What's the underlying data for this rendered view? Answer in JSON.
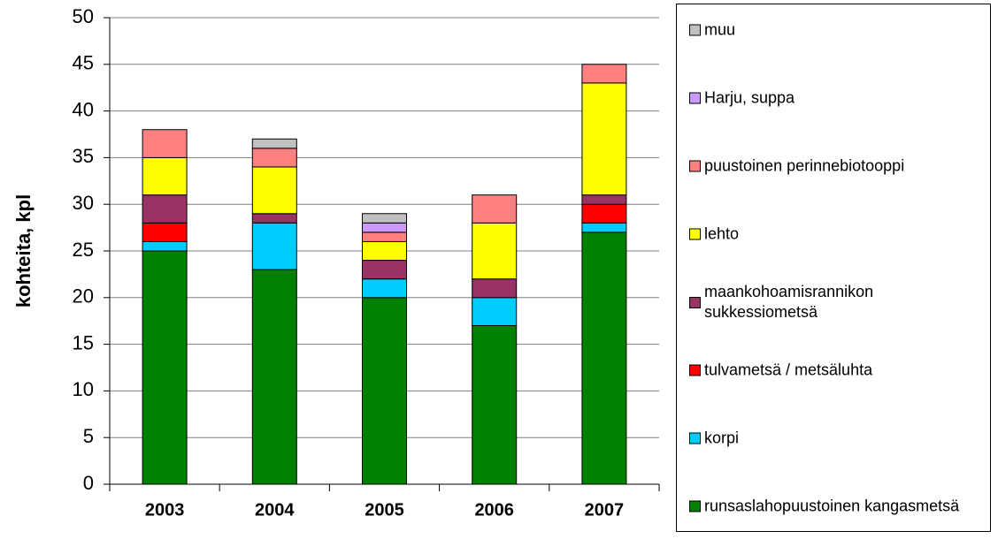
{
  "chart_data": {
    "type": "stacked_bar",
    "y_label": "kohteita, kpl",
    "categories": [
      "2003",
      "2004",
      "2005",
      "2006",
      "2007"
    ],
    "series": [
      {
        "name": "runsaslahopuustoinen kangasmetsä",
        "color": "#008000",
        "values": [
          25,
          23,
          20,
          17,
          27
        ]
      },
      {
        "name": "korpi",
        "color": "#00ccff",
        "values": [
          1,
          5,
          2,
          3,
          1
        ]
      },
      {
        "name": "tulvametsä / metsäluhta",
        "color": "#ff0000",
        "values": [
          2,
          0,
          0,
          0,
          2
        ]
      },
      {
        "name": "maankohoamisrannikon sukkessiometsä",
        "color": "#993366",
        "values": [
          3,
          1,
          2,
          2,
          1
        ]
      },
      {
        "name": "lehto",
        "color": "#ffff00",
        "values": [
          4,
          5,
          2,
          6,
          12
        ]
      },
      {
        "name": "puustoinen perinnebiotooppi",
        "color": "#ff8080",
        "values": [
          3,
          2,
          1,
          3,
          2
        ]
      },
      {
        "name": "Harju, suppa",
        "color": "#cc99ff",
        "values": [
          0,
          0,
          1,
          0,
          0
        ]
      },
      {
        "name": "muu",
        "color": "#c0c0c0",
        "values": [
          0,
          1,
          1,
          0,
          0
        ]
      }
    ],
    "ylim": [
      0,
      50
    ],
    "yticks": [
      0,
      5,
      10,
      15,
      20,
      25,
      30,
      35,
      40,
      45,
      50
    ],
    "grid": true
  }
}
